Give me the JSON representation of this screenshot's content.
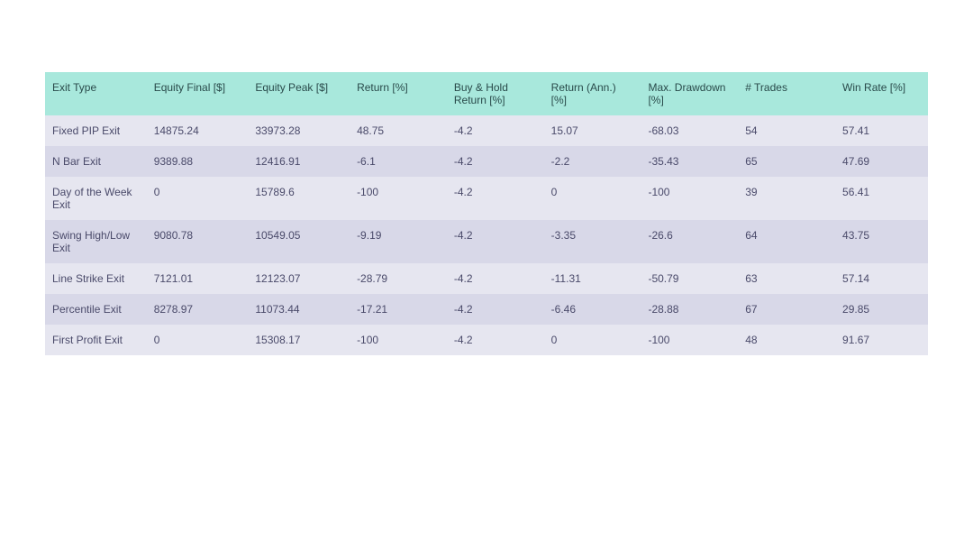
{
  "table": {
    "type": "table",
    "header_bg": "#a8e8dc",
    "row_bg_odd": "#e6e6f0",
    "row_bg_even": "#d8d8e8",
    "header_text_color": "#294a4a",
    "cell_text_color": "#4a4a6a",
    "font_family": "Verdana",
    "font_size_pt": 9,
    "columns": [
      "Exit Type",
      "Equity Final [$]",
      "Equity Peak [$]",
      "Return [%]",
      "Buy & Hold Return [%]",
      "Return (Ann.) [%]",
      "Max. Drawdown [%]",
      "# Trades",
      "Win Rate [%]"
    ],
    "rows": [
      [
        "Fixed PIP Exit",
        "14875.24",
        "33973.28",
        "48.75",
        "-4.2",
        "15.07",
        "-68.03",
        "54",
        "57.41"
      ],
      [
        "N Bar Exit",
        "9389.88",
        "12416.91",
        "-6.1",
        "-4.2",
        "-2.2",
        "-35.43",
        "65",
        "47.69"
      ],
      [
        "Day of the Week Exit",
        "0",
        "15789.6",
        "-100",
        "-4.2",
        "0",
        "-100",
        "39",
        "56.41"
      ],
      [
        "Swing High/Low Exit",
        "9080.78",
        "10549.05",
        "-9.19",
        "-4.2",
        "-3.35",
        "-26.6",
        "64",
        "43.75"
      ],
      [
        "Line Strike Exit",
        "7121.01",
        "12123.07",
        "-28.79",
        "-4.2",
        "-11.31",
        "-50.79",
        "63",
        "57.14"
      ],
      [
        "Percentile Exit",
        "8278.97",
        "11073.44",
        "-17.21",
        "-4.2",
        "-6.46",
        "-28.88",
        "67",
        "29.85"
      ],
      [
        "First Profit Exit",
        "0",
        "15308.17",
        "-100",
        "-4.2",
        "0",
        "-100",
        "48",
        "91.67"
      ]
    ]
  }
}
